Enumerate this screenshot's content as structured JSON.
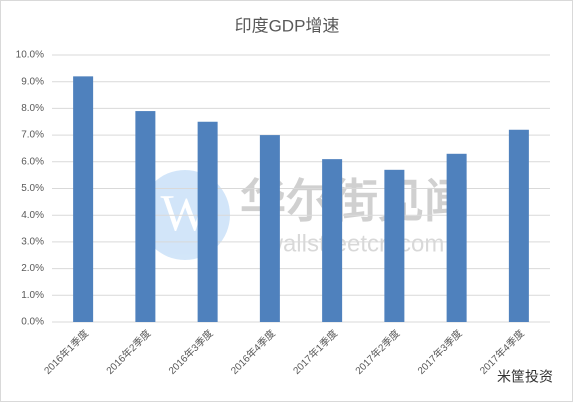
{
  "chart_data": {
    "type": "bar",
    "title": "印度GDP增速",
    "categories": [
      "2016年1季度",
      "2016年2季度",
      "2016年3季度",
      "2016年4季度",
      "2017年1季度",
      "2017年2季度",
      "2017年3季度",
      "2017年4季度"
    ],
    "values": [
      9.2,
      7.9,
      7.5,
      7.0,
      6.1,
      5.7,
      6.3,
      7.2
    ],
    "color": "#4f81bd",
    "ylim": [
      0,
      10
    ],
    "yticks": [
      {
        "value": 0,
        "label": "0.0%"
      },
      {
        "value": 1,
        "label": "1.0%"
      },
      {
        "value": 2,
        "label": "2.0%"
      },
      {
        "value": 3,
        "label": "3.0%"
      },
      {
        "value": 4,
        "label": "4.0%"
      },
      {
        "value": 5,
        "label": "5.0%"
      },
      {
        "value": 6,
        "label": "6.0%"
      },
      {
        "value": 7,
        "label": "7.0%"
      },
      {
        "value": 8,
        "label": "8.0%"
      },
      {
        "value": 9,
        "label": "9.0%"
      },
      {
        "value": 10,
        "label": "10.0%"
      }
    ],
    "grid": true,
    "annotations": [
      "华尔街见闻",
      "wallstreetcn.com",
      "米筐投资"
    ]
  }
}
